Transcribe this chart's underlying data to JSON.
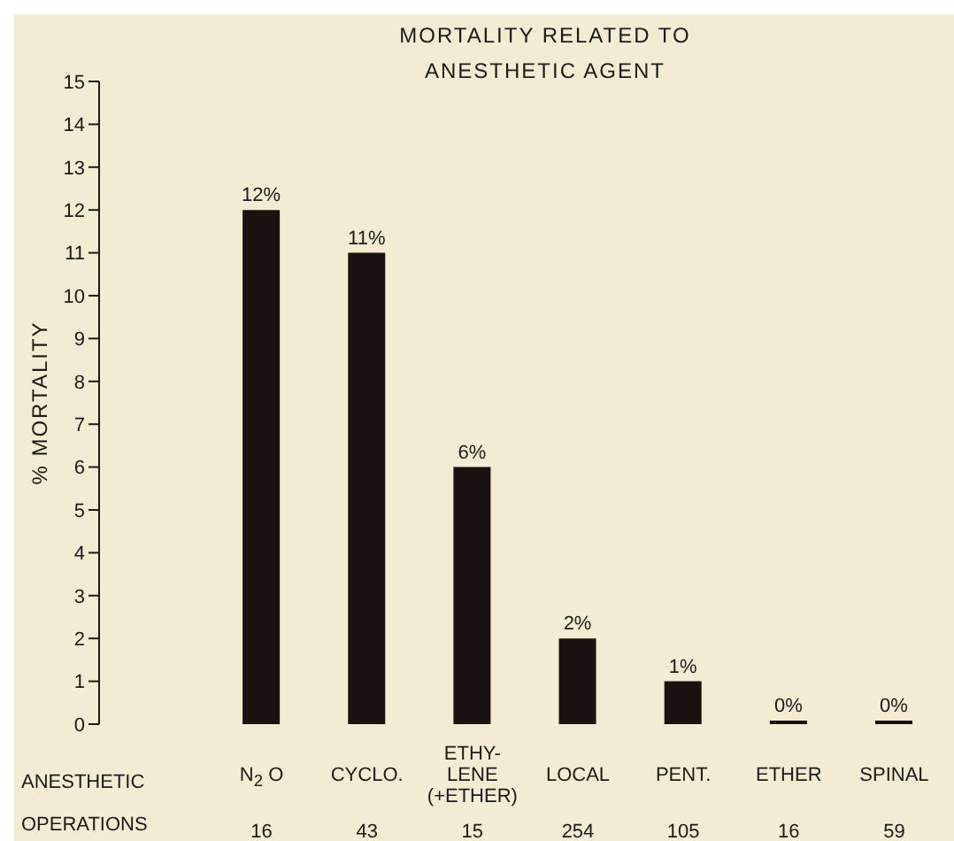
{
  "chart_data": {
    "type": "bar",
    "title": "MORTALITY RELATED TO\nANESTHETIC AGENT",
    "ylabel": "% MORTALITY",
    "categories": [
      "N$_{2}$ O",
      "CYCLO.",
      "ETHY-\nLENE\n(+ETHER)",
      "LOCAL",
      "PENT.",
      "ETHER",
      "SPINAL"
    ],
    "values": [
      12,
      11,
      6,
      2,
      1,
      0,
      0
    ],
    "color": "#1a1210",
    "value_labels": [
      "12%",
      "11%",
      "6%",
      "2%",
      "1%",
      "0%",
      "0%"
    ],
    "ylim": [
      0,
      15
    ],
    "yticks": [
      0,
      1,
      2,
      3,
      4,
      5,
      6,
      7,
      8,
      9,
      10,
      11,
      12,
      13,
      14,
      15
    ],
    "grid": false,
    "legend": false,
    "annotations": [
      "ANESTHETIC",
      "OPERATIONS",
      "16",
      "43",
      "15",
      "254",
      "105",
      "16",
      "59"
    ]
  }
}
